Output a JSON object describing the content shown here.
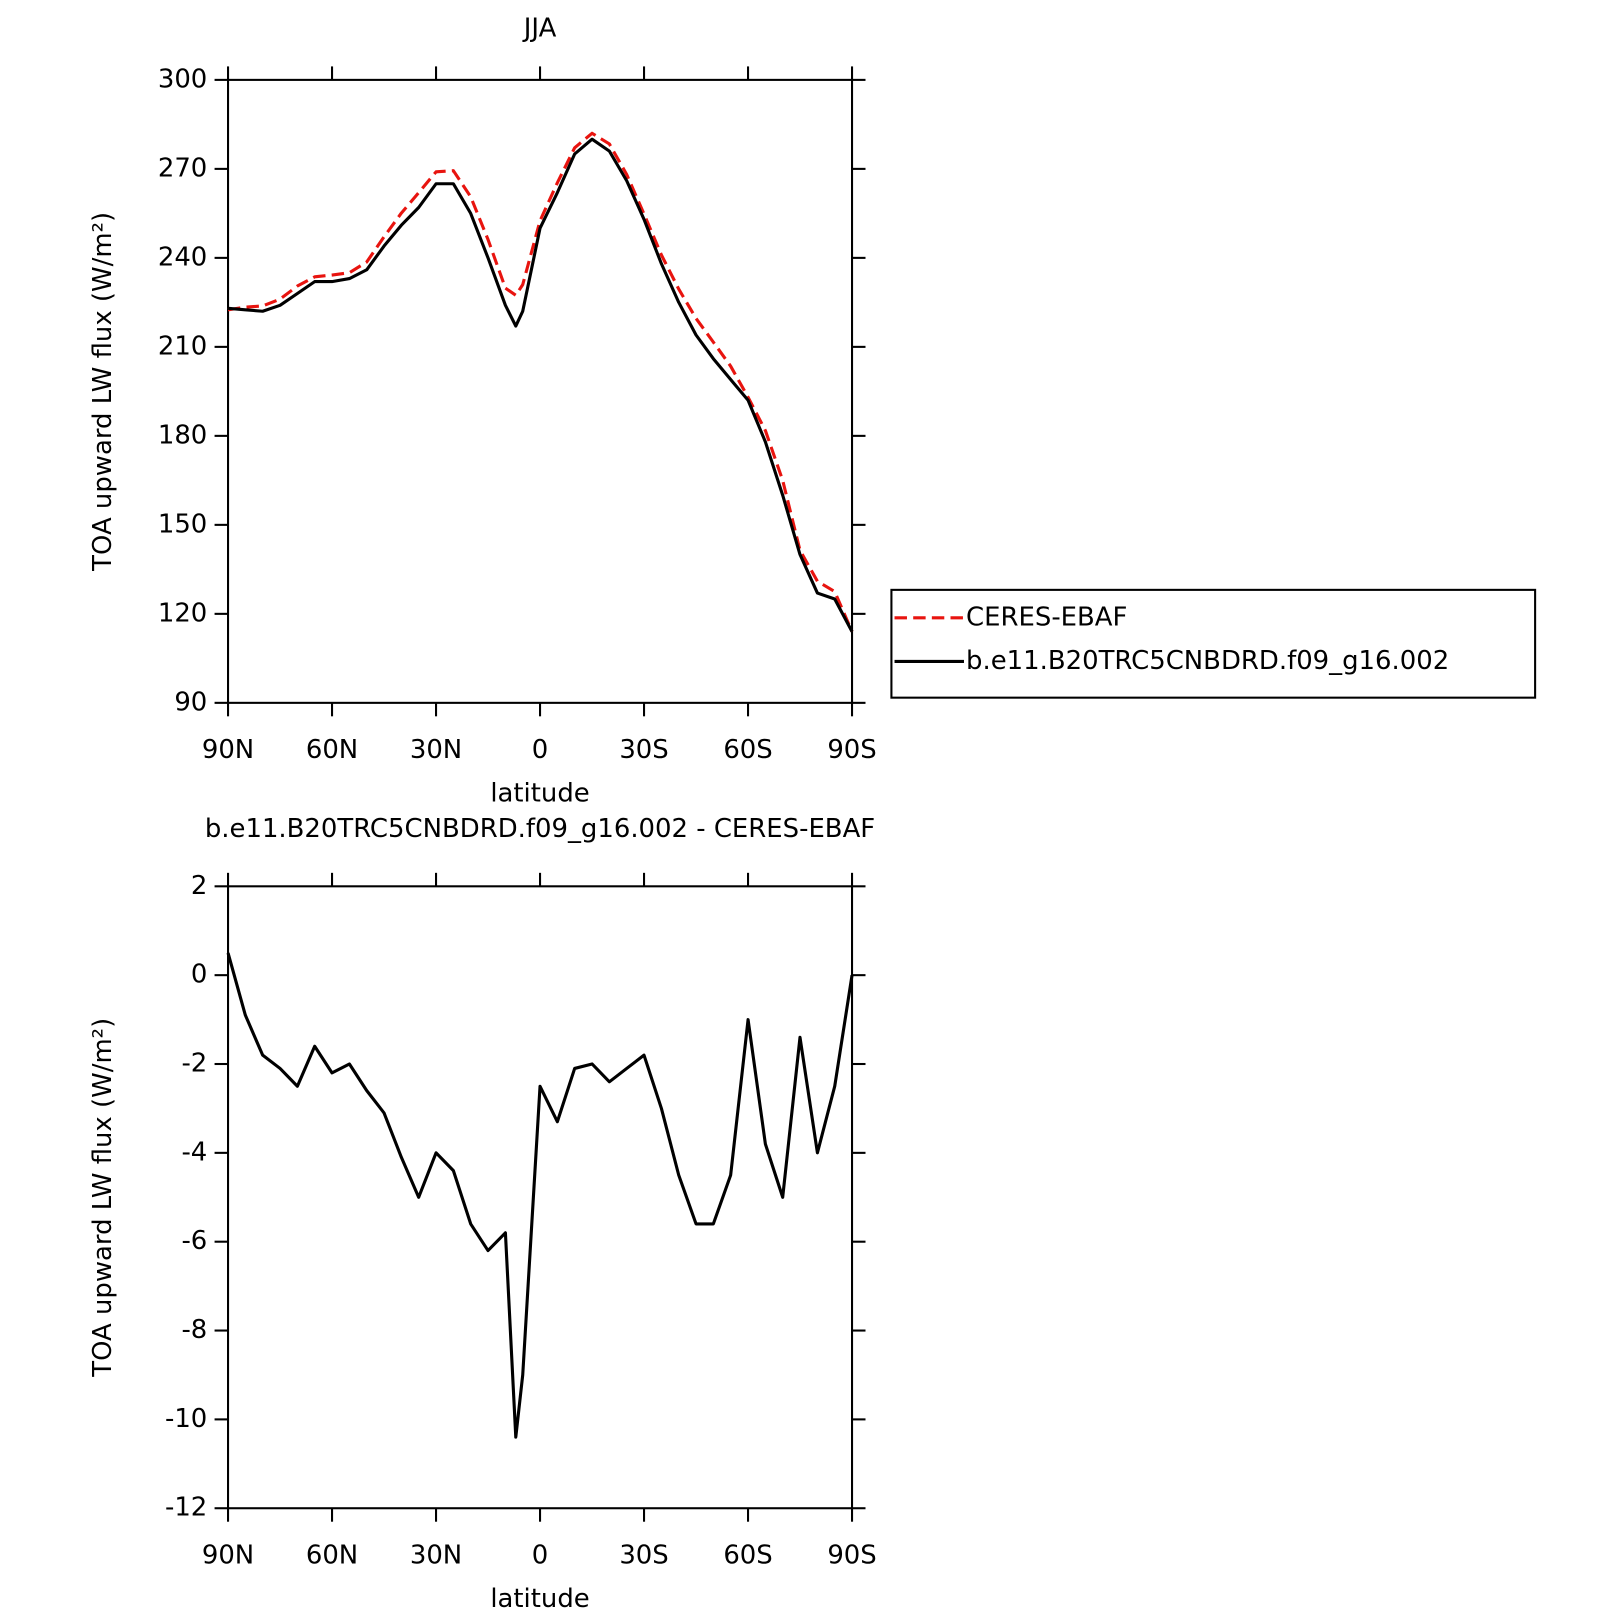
{
  "chart_data": [
    {
      "type": "line",
      "title": "JJA",
      "xlabel": "latitude",
      "ylabel": "TOA upward LW flux (W/m²)",
      "x": [
        90,
        85,
        80,
        75,
        70,
        65,
        60,
        55,
        50,
        45,
        40,
        35,
        30,
        25,
        20,
        15,
        10,
        7,
        5,
        0,
        -5,
        -10,
        -15,
        -20,
        -25,
        -30,
        -35,
        -40,
        -45,
        -50,
        -55,
        -60,
        -65,
        -70,
        -75,
        -80,
        -85,
        -90
      ],
      "series": [
        {
          "name": "CERES-EBAF",
          "color": "#e8140f",
          "linestyle": "dashed",
          "values": [
            222.5,
            223.4,
            223.8,
            226.1,
            230.5,
            233.6,
            234.2,
            235,
            238.6,
            247.1,
            255.1,
            262,
            269,
            269.4,
            260.6,
            246.2,
            229.8,
            227.4,
            231,
            252.5,
            265.3,
            277.1,
            282,
            278.4,
            268.1,
            254.8,
            241,
            229.5,
            219.6,
            211.6,
            203.5,
            193,
            181.8,
            165,
            141.4,
            131,
            127.5,
            114
          ]
        },
        {
          "name": "b.e11.B20TRC5CNBDRD.f09_g16.002",
          "color": "#000000",
          "linestyle": "solid",
          "values": [
            223,
            222.5,
            222,
            224,
            228,
            232,
            232,
            233,
            236,
            244,
            251,
            257,
            265,
            265,
            255,
            240,
            224,
            217,
            222,
            250,
            262,
            275,
            280,
            276,
            266,
            253,
            238,
            225,
            214,
            206,
            199,
            192,
            178,
            160,
            140,
            127,
            125,
            114
          ]
        }
      ],
      "xlim": [
        90,
        -90
      ],
      "xticks": [
        {
          "value": 90,
          "label": "90N"
        },
        {
          "value": 60,
          "label": "60N"
        },
        {
          "value": 30,
          "label": "30N"
        },
        0,
        {
          "value": -30,
          "label": "30S"
        },
        {
          "value": -60,
          "label": "60S"
        },
        {
          "value": -90,
          "label": "90S"
        }
      ],
      "ylim": [
        90,
        300
      ],
      "yticks": [
        90,
        120,
        150,
        180,
        210,
        240,
        270,
        300
      ],
      "legend": "right"
    },
    {
      "type": "line",
      "title": "b.e11.B20TRC5CNBDRD.f09_g16.002 - CERES-EBAF",
      "xlabel": "latitude",
      "ylabel": "TOA upward LW flux (W/m²)",
      "x": [
        90,
        85,
        80,
        75,
        70,
        65,
        60,
        55,
        50,
        45,
        40,
        35,
        30,
        25,
        20,
        15,
        10,
        7,
        5,
        0,
        -5,
        -10,
        -15,
        -20,
        -25,
        -30,
        -35,
        -40,
        -45,
        -50,
        -55,
        -60,
        -65,
        -70,
        -75,
        -80,
        -85,
        -90
      ],
      "color": "#000000",
      "values": [
        0.5,
        -0.9,
        -1.8,
        -2.1,
        -2.5,
        -1.6,
        -2.2,
        -2.0,
        -2.6,
        -3.1,
        -4.1,
        -5.0,
        -4.0,
        -4.4,
        -5.6,
        -6.2,
        -5.8,
        -10.4,
        -9.0,
        -2.5,
        -3.3,
        -2.1,
        -2.0,
        -2.4,
        -2.1,
        -1.8,
        -3.0,
        -4.5,
        -5.6,
        -5.6,
        -4.5,
        -1.0,
        -3.8,
        -5.0,
        -1.4,
        -4.0,
        -2.5,
        0.0
      ],
      "xlim": [
        90,
        -90
      ],
      "xticks": [
        {
          "value": 90,
          "label": "90N"
        },
        {
          "value": 60,
          "label": "60N"
        },
        {
          "value": 30,
          "label": "30N"
        },
        0,
        {
          "value": -30,
          "label": "30S"
        },
        {
          "value": -60,
          "label": "60S"
        },
        {
          "value": -90,
          "label": "90S"
        }
      ],
      "ylim": [
        -12,
        2
      ],
      "yticks": [
        -12,
        -10,
        -8,
        -6,
        -4,
        -2,
        0,
        2
      ]
    }
  ]
}
